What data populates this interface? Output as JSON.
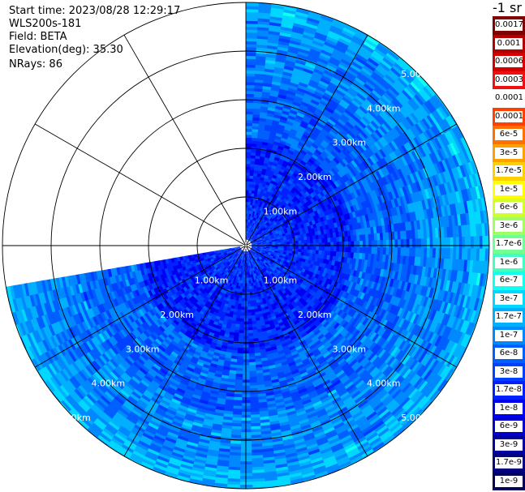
{
  "header": {
    "start_time": "Start time: 2023/08/28 12:29:17",
    "instrument": "WLS200s-181",
    "field": "Field: BETA",
    "elevation": "Elevation(deg): 35.30",
    "nrays": "NRays: 86"
  },
  "colorbar": {
    "title": "-1 sr",
    "entries": [
      {
        "label": "0.0017",
        "color": "#800000"
      },
      {
        "label": "0.001",
        "color": "#b30000"
      },
      {
        "label": "0.0006",
        "color": "#d40000"
      },
      {
        "label": "0.0003",
        "color": "#f01010"
      },
      {
        "label": "0.00017",
        "color": "#ffffff"
      },
      {
        "label": "0.0001",
        "color": "#ff4000"
      },
      {
        "label": "6e-5",
        "color": "#ff7000"
      },
      {
        "label": "3e-5",
        "color": "#ffa000"
      },
      {
        "label": "1.7e-5",
        "color": "#ffd000"
      },
      {
        "label": "1e-5",
        "color": "#ffff00"
      },
      {
        "label": "6e-6",
        "color": "#d0ff30"
      },
      {
        "label": "3e-6",
        "color": "#a0ff60"
      },
      {
        "label": "1.7e-6",
        "color": "#70ff90"
      },
      {
        "label": "1e-6",
        "color": "#40ffc0"
      },
      {
        "label": "6e-7",
        "color": "#10fff0"
      },
      {
        "label": "3e-7",
        "color": "#00d8ff"
      },
      {
        "label": "1.7e-7",
        "color": "#00b0ff"
      },
      {
        "label": "1e-7",
        "color": "#0088ff"
      },
      {
        "label": "6e-8",
        "color": "#0060ff"
      },
      {
        "label": "3e-8",
        "color": "#0040ff"
      },
      {
        "label": "1.7e-8",
        "color": "#0020ff"
      },
      {
        "label": "1e-8",
        "color": "#0000f0"
      },
      {
        "label": "6e-9",
        "color": "#0000c8"
      },
      {
        "label": "3e-9",
        "color": "#0000a0"
      },
      {
        "label": "1.7e-9",
        "color": "#000080"
      },
      {
        "label": "1e-9",
        "color": "#00005a"
      }
    ]
  },
  "chart_data": {
    "type": "heatmap",
    "projection": "polar (PPI)",
    "field": "BETA",
    "elevation_deg": 35.3,
    "n_rays": 86,
    "range_rings_km": [
      1,
      2,
      3,
      4,
      5
    ],
    "range_ring_labels": [
      "1.00km",
      "2.00km",
      "3.00km",
      "4.00km",
      "5.00km"
    ],
    "azimuth_spokes_deg": [
      0,
      30,
      60,
      90,
      120,
      150,
      180,
      210,
      240,
      270,
      300,
      330
    ],
    "scanned_sector_deg": {
      "start": 0,
      "end": 260
    },
    "max_range_km": 5.0,
    "grid": true,
    "colorscale": "jet",
    "value_pattern": "backscatter mostly 1e-8 to 1e-7; strongest (about 1e-8 to 3e-8) within 1-2 km of center, weaker (about 3e-7 to 6e-7) near outer edge"
  }
}
